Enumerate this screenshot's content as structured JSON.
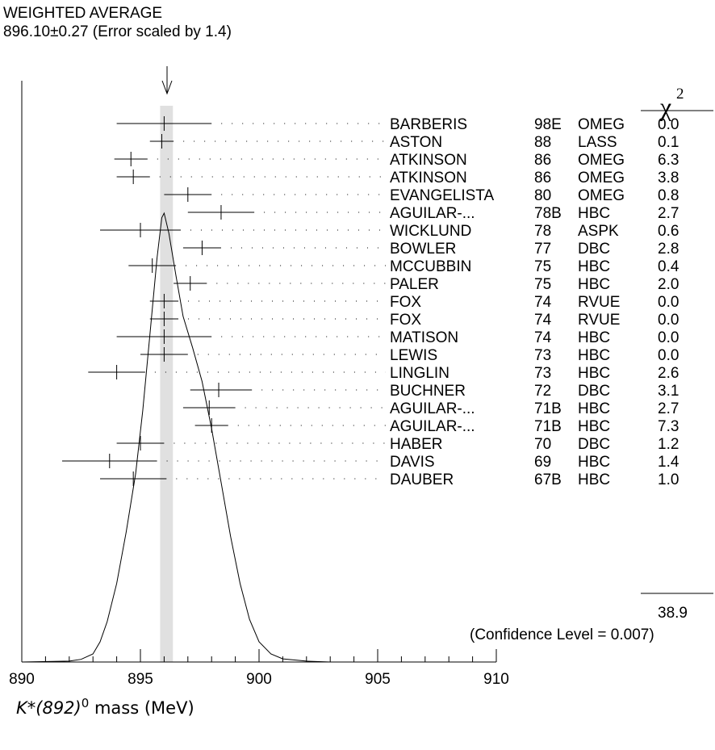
{
  "chart_data": {
    "type": "scatter",
    "xlim": [
      890,
      910
    ],
    "x_ticks": [
      "890",
      "895",
      "900",
      "905",
      "910"
    ],
    "x_minor_ticks": [
      891,
      892,
      893,
      894,
      896,
      897,
      898,
      899,
      901,
      902,
      903,
      904,
      906,
      907,
      908,
      909
    ],
    "xlabel_main": "K*(892)",
    "xlabel_sup": "0",
    "xlabel_rest": " mass (MeV)",
    "weighted_average": {
      "title": "WEIGHTED AVERAGE",
      "text": "896.10±0.27 (Error scaled by 1.4)",
      "value": 896.1,
      "error": 0.27
    },
    "chi2_header": "χ",
    "chi2_sup": "2",
    "measurements": [
      {
        "author": "BARBERIS",
        "year": "98E",
        "tech": "OMEG",
        "chi2": "0.0",
        "value": 896.0,
        "lo": 894.0,
        "hi": 898.0
      },
      {
        "author": "ASTON",
        "year": "88",
        "tech": "LASS",
        "chi2": "0.1",
        "value": 895.9,
        "lo": 895.4,
        "hi": 896.4
      },
      {
        "author": "ATKINSON",
        "year": "86",
        "tech": "OMEG",
        "chi2": "6.3",
        "value": 894.6,
        "lo": 893.9,
        "hi": 895.3
      },
      {
        "author": "ATKINSON",
        "year": "86",
        "tech": "OMEG",
        "chi2": "3.8",
        "value": 894.7,
        "lo": 894.0,
        "hi": 895.4
      },
      {
        "author": "EVANGELISTA",
        "year": "80",
        "tech": "OMEG",
        "chi2": "0.8",
        "value": 897.0,
        "lo": 896.0,
        "hi": 898.0
      },
      {
        "author": "AGUILAR-...",
        "year": "78B",
        "tech": "HBC",
        "chi2": "2.7",
        "value": 898.4,
        "lo": 897.0,
        "hi": 899.8
      },
      {
        "author": "WICKLUND",
        "year": "78",
        "tech": "ASPK",
        "chi2": "0.6",
        "value": 895.0,
        "lo": 893.3,
        "hi": 896.7
      },
      {
        "author": "BOWLER",
        "year": "77",
        "tech": "DBC",
        "chi2": "2.8",
        "value": 897.6,
        "lo": 896.8,
        "hi": 898.4
      },
      {
        "author": "MCCUBBIN",
        "year": "75",
        "tech": "HBC",
        "chi2": "0.4",
        "value": 895.5,
        "lo": 894.5,
        "hi": 896.5
      },
      {
        "author": "PALER",
        "year": "75",
        "tech": "HBC",
        "chi2": "2.0",
        "value": 897.1,
        "lo": 896.4,
        "hi": 897.8
      },
      {
        "author": "FOX",
        "year": "74",
        "tech": "RVUE",
        "chi2": "0.0",
        "value": 896.0,
        "lo": 895.4,
        "hi": 896.6
      },
      {
        "author": "FOX",
        "year": "74",
        "tech": "RVUE",
        "chi2": "0.0",
        "value": 896.0,
        "lo": 895.4,
        "hi": 896.6
      },
      {
        "author": "MATISON",
        "year": "74",
        "tech": "HBC",
        "chi2": "0.0",
        "value": 896.0,
        "lo": 894.0,
        "hi": 898.0
      },
      {
        "author": "LEWIS",
        "year": "73",
        "tech": "HBC",
        "chi2": "0.0",
        "value": 896.0,
        "lo": 895.0,
        "hi": 897.0
      },
      {
        "author": "LINGLIN",
        "year": "73",
        "tech": "HBC",
        "chi2": "2.6",
        "value": 894.0,
        "lo": 892.8,
        "hi": 895.2
      },
      {
        "author": "BUCHNER",
        "year": "72",
        "tech": "DBC",
        "chi2": "3.1",
        "value": 898.3,
        "lo": 897.1,
        "hi": 899.7
      },
      {
        "author": "AGUILAR-...",
        "year": "71B",
        "tech": "HBC",
        "chi2": "2.7",
        "value": 897.9,
        "lo": 896.8,
        "hi": 899.0
      },
      {
        "author": "AGUILAR-...",
        "year": "71B",
        "tech": "HBC",
        "chi2": "7.3",
        "value": 898.0,
        "lo": 897.3,
        "hi": 898.7
      },
      {
        "author": "HABER",
        "year": "70",
        "tech": "DBC",
        "chi2": "1.2",
        "value": 895.0,
        "lo": 894.0,
        "hi": 896.0
      },
      {
        "author": "DAVIS",
        "year": "69",
        "tech": "HBC",
        "chi2": "1.4",
        "value": 893.7,
        "lo": 891.7,
        "hi": 895.7
      },
      {
        "author": "DAUBER",
        "year": "67B",
        "tech": "HBC",
        "chi2": "1.0",
        "value": 894.7,
        "lo": 893.3,
        "hi": 896.1
      }
    ],
    "chi2_total": "38.9",
    "confidence_level": "(Confidence Level = 0.007)",
    "ideogram_curve": [
      [
        890.0,
        0.0
      ],
      [
        892.0,
        0.002
      ],
      [
        892.5,
        0.006
      ],
      [
        893.0,
        0.018
      ],
      [
        893.3,
        0.045
      ],
      [
        893.6,
        0.09
      ],
      [
        894.0,
        0.175
      ],
      [
        894.4,
        0.29
      ],
      [
        894.8,
        0.42
      ],
      [
        895.1,
        0.56
      ],
      [
        895.4,
        0.73
      ],
      [
        895.7,
        0.9
      ],
      [
        895.9,
        0.99
      ],
      [
        896.0,
        1.0
      ],
      [
        896.2,
        0.955
      ],
      [
        896.5,
        0.86
      ],
      [
        896.8,
        0.77
      ],
      [
        897.2,
        0.7
      ],
      [
        897.6,
        0.625
      ],
      [
        898.0,
        0.52
      ],
      [
        898.4,
        0.4
      ],
      [
        898.8,
        0.28
      ],
      [
        899.2,
        0.175
      ],
      [
        899.6,
        0.095
      ],
      [
        900.0,
        0.045
      ],
      [
        900.5,
        0.018
      ],
      [
        901.0,
        0.007
      ],
      [
        902.0,
        0.002
      ],
      [
        903.0,
        0.0
      ],
      [
        910.0,
        0.0
      ]
    ]
  }
}
